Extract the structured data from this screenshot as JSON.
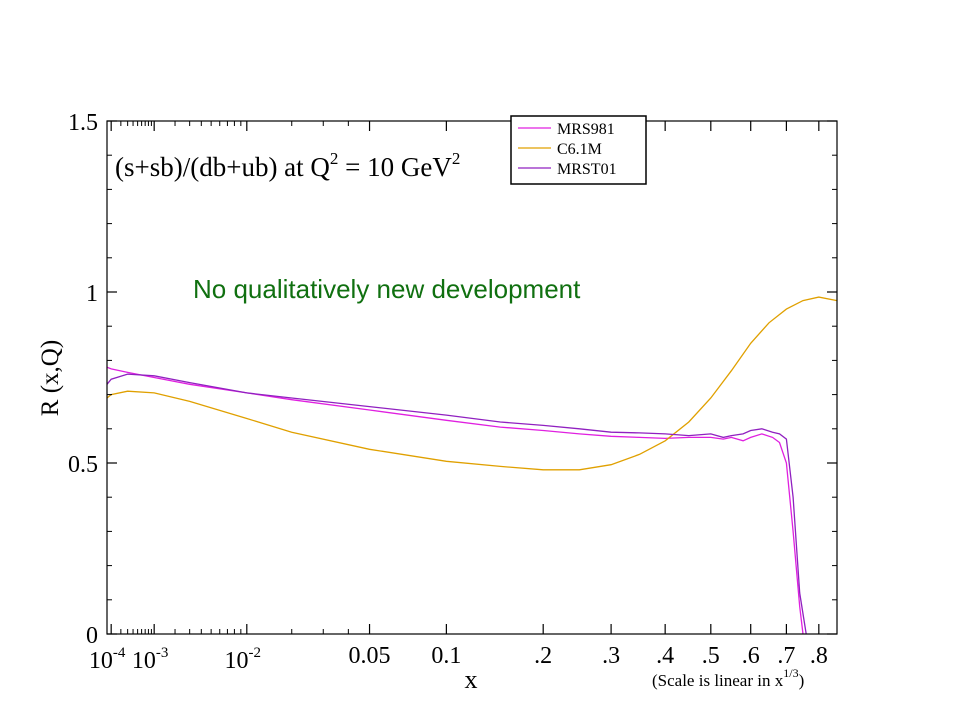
{
  "chart_data": {
    "type": "line",
    "title_parts": {
      "main": "(s+sb)/(db+ub) at Q",
      "sup1": "2",
      "mid": " = 10 GeV",
      "sup2": "2"
    },
    "annotation": "No qualitatively new development",
    "ylabel": "R (x,Q)",
    "xlabel": "x",
    "x_scale_note_parts": {
      "main": "(Scale is linear in x",
      "sup": "1/3",
      "close": ")"
    },
    "ylim": [
      0,
      1.5
    ],
    "xlim": [
      7e-05,
      0.86
    ],
    "y_ticks": [
      {
        "v": 0,
        "label": "0"
      },
      {
        "v": 0.5,
        "label": "0.5"
      },
      {
        "v": 1,
        "label": "1"
      },
      {
        "v": 1.5,
        "label": "1.5"
      }
    ],
    "x_ticks": [
      {
        "v": 0.0001,
        "base": "10",
        "sup": "-4"
      },
      {
        "v": 0.001,
        "base": "10",
        "sup": "-3"
      },
      {
        "v": 0.01,
        "base": "10",
        "sup": "-2"
      },
      {
        "v": 0.05,
        "label": "0.05"
      },
      {
        "v": 0.1,
        "label": "0.1"
      },
      {
        "v": 0.2,
        "label": ".2"
      },
      {
        "v": 0.3,
        "label": ".3"
      },
      {
        "v": 0.4,
        "label": ".4"
      },
      {
        "v": 0.5,
        "label": ".5"
      },
      {
        "v": 0.6,
        "label": ".6"
      },
      {
        "v": 0.7,
        "label": ".7"
      },
      {
        "v": 0.8,
        "label": ".8"
      }
    ],
    "legend_position": "top-right",
    "series": [
      {
        "name": "MRS981",
        "color": "#e020e0",
        "points": [
          [
            7e-05,
            0.78
          ],
          [
            0.0001,
            0.775
          ],
          [
            0.0003,
            0.765
          ],
          [
            0.001,
            0.75
          ],
          [
            0.003,
            0.73
          ],
          [
            0.01,
            0.705
          ],
          [
            0.02,
            0.685
          ],
          [
            0.05,
            0.655
          ],
          [
            0.1,
            0.625
          ],
          [
            0.15,
            0.605
          ],
          [
            0.2,
            0.595
          ],
          [
            0.25,
            0.585
          ],
          [
            0.3,
            0.578
          ],
          [
            0.35,
            0.575
          ],
          [
            0.4,
            0.572
          ],
          [
            0.45,
            0.575
          ],
          [
            0.5,
            0.575
          ],
          [
            0.53,
            0.57
          ],
          [
            0.55,
            0.575
          ],
          [
            0.58,
            0.565
          ],
          [
            0.6,
            0.575
          ],
          [
            0.63,
            0.585
          ],
          [
            0.66,
            0.575
          ],
          [
            0.68,
            0.56
          ],
          [
            0.7,
            0.5
          ],
          [
            0.72,
            0.3
          ],
          [
            0.74,
            0.08
          ],
          [
            0.75,
            0.0
          ]
        ]
      },
      {
        "name": "C6.1M",
        "color": "#e0a000",
        "points": [
          [
            7e-05,
            0.69
          ],
          [
            0.0001,
            0.7
          ],
          [
            0.0003,
            0.71
          ],
          [
            0.001,
            0.705
          ],
          [
            0.003,
            0.68
          ],
          [
            0.01,
            0.63
          ],
          [
            0.02,
            0.59
          ],
          [
            0.05,
            0.54
          ],
          [
            0.1,
            0.505
          ],
          [
            0.15,
            0.49
          ],
          [
            0.2,
            0.48
          ],
          [
            0.25,
            0.48
          ],
          [
            0.3,
            0.495
          ],
          [
            0.35,
            0.525
          ],
          [
            0.4,
            0.565
          ],
          [
            0.45,
            0.62
          ],
          [
            0.5,
            0.69
          ],
          [
            0.55,
            0.77
          ],
          [
            0.6,
            0.85
          ],
          [
            0.65,
            0.91
          ],
          [
            0.7,
            0.95
          ],
          [
            0.75,
            0.975
          ],
          [
            0.8,
            0.985
          ],
          [
            0.86,
            0.975
          ]
        ]
      },
      {
        "name": "MRST01",
        "color": "#9020c0",
        "points": [
          [
            7e-05,
            0.73
          ],
          [
            0.0001,
            0.745
          ],
          [
            0.0003,
            0.76
          ],
          [
            0.001,
            0.755
          ],
          [
            0.003,
            0.735
          ],
          [
            0.01,
            0.705
          ],
          [
            0.02,
            0.69
          ],
          [
            0.05,
            0.665
          ],
          [
            0.1,
            0.64
          ],
          [
            0.15,
            0.62
          ],
          [
            0.2,
            0.61
          ],
          [
            0.25,
            0.6
          ],
          [
            0.3,
            0.59
          ],
          [
            0.35,
            0.588
          ],
          [
            0.4,
            0.585
          ],
          [
            0.45,
            0.58
          ],
          [
            0.5,
            0.585
          ],
          [
            0.53,
            0.575
          ],
          [
            0.55,
            0.58
          ],
          [
            0.58,
            0.585
          ],
          [
            0.6,
            0.595
          ],
          [
            0.63,
            0.6
          ],
          [
            0.66,
            0.59
          ],
          [
            0.68,
            0.585
          ],
          [
            0.7,
            0.57
          ],
          [
            0.72,
            0.4
          ],
          [
            0.74,
            0.12
          ],
          [
            0.76,
            0.0
          ]
        ]
      }
    ]
  }
}
